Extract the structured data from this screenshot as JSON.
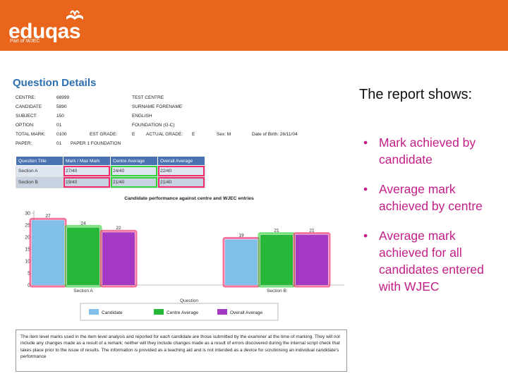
{
  "brand": {
    "name": "eduqas",
    "sub": "Part of WJEC",
    "color": "#e8651b"
  },
  "report": {
    "title": "Question Details",
    "details": [
      [
        [
          "CENTRE:",
          0
        ],
        [
          "68999",
          58
        ],
        [
          "TEST CENTRE",
          165
        ]
      ],
      [
        [
          "CANDIDATE",
          0
        ],
        [
          "5890",
          58
        ],
        [
          "SURNAME FORENAME",
          165
        ]
      ],
      [
        [
          "SUBJECT:",
          0
        ],
        [
          "150",
          58
        ],
        [
          "ENGLISH",
          165
        ]
      ],
      [
        [
          "OPTION:",
          0
        ],
        [
          "01",
          58
        ],
        [
          "FOUNDATION (G-C)",
          165
        ]
      ],
      [
        [
          "TOTAL MARK:",
          0
        ],
        [
          "0100",
          58
        ],
        [
          "EST GRADE:",
          105
        ],
        [
          "E",
          165
        ],
        [
          "ACTUAL GRADE:",
          185
        ],
        [
          "E",
          250
        ],
        [
          "Sex: M",
          285
        ],
        [
          "Date of Birth: 26/11/04",
          335
        ]
      ],
      [
        [
          "PAPER:",
          0
        ],
        [
          "01",
          58
        ],
        [
          "PAPER 1 FOUNDATION",
          78
        ]
      ]
    ],
    "table": {
      "headers": [
        "Question Title",
        "Mark / Max Mark",
        "Centre Average",
        "Overall Average"
      ],
      "rows": [
        [
          "Section A",
          "27/40",
          "24/40",
          "22/40"
        ],
        [
          "Section B",
          "19/40",
          "21/40",
          "21/40"
        ]
      ]
    },
    "note": "The item level marks used in the item level analysis and reported for each candidate are those submitted by the examiner at the time of marking. They will not include any changes made as a result of a remark; neither will they include changes made as a result of errors discovered during the internal script check that takes place prior to the issue of results. The information is provided as a teaching aid and is not intended as a device for scrutinising an individual candidate's performance"
  },
  "chart_data": {
    "type": "bar",
    "title": "Candidate performance against centre and WJEC entries",
    "xlabel": "Question",
    "ylabel": "",
    "categories": [
      "Section A",
      "Section B"
    ],
    "ylim": [
      0,
      30
    ],
    "yticks": [
      0,
      5,
      10,
      15,
      20,
      25,
      30
    ],
    "series": [
      {
        "name": "Candidate",
        "values": [
          27,
          19
        ],
        "color": "#7fbfe8",
        "glow": "#ef2d6e"
      },
      {
        "name": "Centre Average",
        "values": [
          24,
          21
        ],
        "color": "#27b83a",
        "glow": "#34d23c"
      },
      {
        "name": "Overall Average",
        "values": [
          22,
          21
        ],
        "color": "#a43ac4",
        "glow": "#ef2d6e"
      }
    ],
    "legend": "bottom"
  },
  "side": {
    "title": "The report shows:",
    "bullet_char": "•",
    "bullets": [
      "Mark achieved by candidate",
      "Average mark achieved by centre",
      "Average mark achieved for all candidates entered with WJEC"
    ],
    "bullet_color": "#c31e86"
  }
}
